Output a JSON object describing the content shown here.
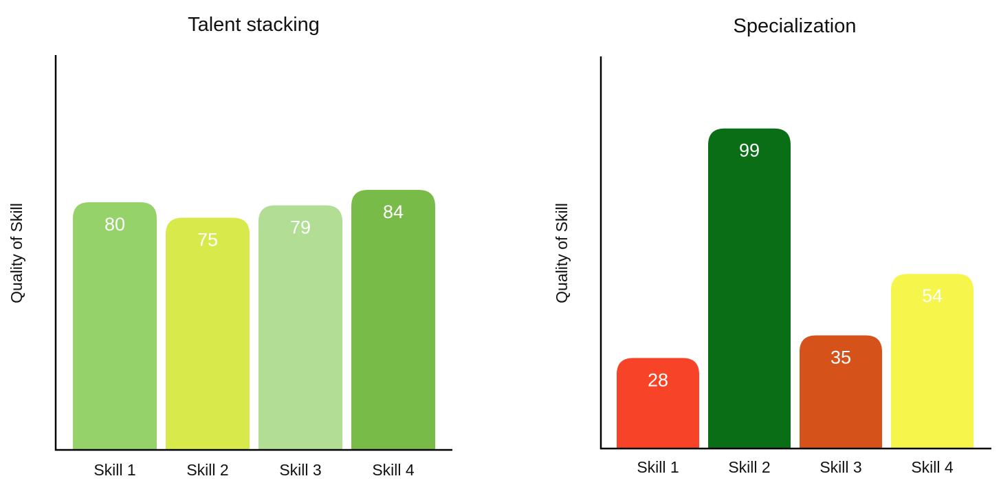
{
  "chart_data": [
    {
      "type": "bar",
      "title": "Talent stacking",
      "xlabel": "",
      "ylabel": "Quality of Skill",
      "categories": [
        "Skill 1",
        "Skill 2",
        "Skill 3",
        "Skill 4"
      ],
      "values": [
        80,
        75,
        79,
        84
      ],
      "value_labels": [
        "80",
        "75",
        "79",
        "84"
      ],
      "colors": [
        "#95d26a",
        "#d8e94c",
        "#b1dd94",
        "#79bb49"
      ],
      "ylim": [
        0,
        100
      ],
      "grid": false,
      "legend": "none"
    },
    {
      "type": "bar",
      "title": "Specialization",
      "xlabel": "",
      "ylabel": "Quality of Skill",
      "categories": [
        "Skill 1",
        "Skill 2",
        "Skill 3",
        "Skill 4"
      ],
      "values": [
        28,
        99,
        35,
        54
      ],
      "value_labels": [
        "28",
        "99",
        "35",
        "54"
      ],
      "colors": [
        "#f74428",
        "#0a6e16",
        "#d5531b",
        "#f5f54b"
      ],
      "ylim": [
        0,
        100
      ],
      "grid": false,
      "legend": "none"
    }
  ]
}
